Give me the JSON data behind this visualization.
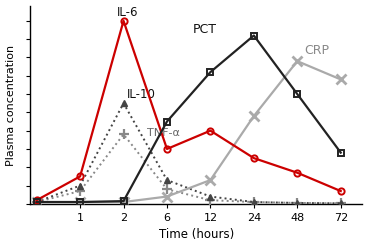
{
  "x_ticks": [
    1,
    2,
    6,
    12,
    24,
    48,
    72
  ],
  "xlabel": "Time (hours)",
  "ylabel": "Plasma concentration",
  "series": {
    "IL6": {
      "x": [
        0,
        1,
        2,
        6,
        12,
        24,
        48,
        72
      ],
      "y": [
        0.02,
        0.15,
        1.0,
        0.3,
        0.4,
        0.25,
        0.17,
        0.07
      ],
      "color": "#cc0000",
      "linestyle": "-",
      "marker": "o",
      "markersize": 4.5,
      "linewidth": 1.6,
      "fillstyle": "none",
      "markeredgewidth": 1.4,
      "label": "IL-6",
      "zorder": 5
    },
    "IL10": {
      "x": [
        0,
        1,
        2,
        6,
        12,
        24,
        48,
        72
      ],
      "y": [
        0.01,
        0.1,
        0.55,
        0.13,
        0.04,
        0.01,
        0.005,
        0.003
      ],
      "color": "#444444",
      "linestyle": ":",
      "marker": "^",
      "markersize": 5,
      "linewidth": 1.4,
      "fillstyle": "full",
      "markeredgewidth": 1.0,
      "label": "IL-10",
      "zorder": 4
    },
    "TNFa": {
      "x": [
        0,
        1,
        2,
        6,
        12,
        24,
        48,
        72
      ],
      "y": [
        0.01,
        0.07,
        0.38,
        0.08,
        0.02,
        0.01,
        0.005,
        0.003
      ],
      "color": "#888888",
      "linestyle": ":",
      "marker": "+",
      "markersize": 7,
      "linewidth": 1.4,
      "fillstyle": "full",
      "markeredgewidth": 1.6,
      "label": "TNF-α",
      "zorder": 3
    },
    "PCT": {
      "x": [
        0,
        1,
        2,
        6,
        12,
        24,
        48,
        72
      ],
      "y": [
        0.01,
        0.01,
        0.015,
        0.45,
        0.72,
        0.92,
        0.6,
        0.28
      ],
      "color": "#222222",
      "linestyle": "-",
      "marker": "s",
      "markersize": 5,
      "linewidth": 1.6,
      "fillstyle": "none",
      "markeredgewidth": 1.4,
      "label": "PCT",
      "zorder": 5
    },
    "CRP": {
      "x": [
        0,
        1,
        2,
        6,
        12,
        24,
        48,
        72
      ],
      "y": [
        0.01,
        0.01,
        0.01,
        0.04,
        0.13,
        0.48,
        0.78,
        0.68
      ],
      "color": "#aaaaaa",
      "linestyle": "-",
      "marker": "x",
      "markersize": 7,
      "linewidth": 1.6,
      "fillstyle": "full",
      "markeredgewidth": 2.0,
      "label": "CRP",
      "zorder": 4
    }
  },
  "labels": {
    "IL6": {
      "ix": 2,
      "iy": 1.01,
      "text": "IL-6",
      "color": "#111111",
      "fontsize": 8.5,
      "ha": "left"
    },
    "IL10": {
      "ix": 2,
      "iy": 0.56,
      "text": "IL-10",
      "color": "#111111",
      "fontsize": 8.5,
      "ha": "left"
    },
    "TNFa": {
      "ix": 2,
      "iy": 0.36,
      "text": "TNF-α",
      "color": "#666666",
      "fontsize": 8.0,
      "ha": "left"
    },
    "PCT": {
      "ix": 4,
      "iy": 0.92,
      "text": "PCT",
      "color": "#111111",
      "fontsize": 9.0,
      "ha": "left"
    },
    "CRP": {
      "ix": 6,
      "iy": 0.8,
      "text": "CRP",
      "color": "#888888",
      "fontsize": 9.0,
      "ha": "left"
    }
  },
  "ylim": [
    0,
    1.08
  ],
  "xlim": [
    -0.15,
    7.5
  ],
  "background_color": "#ffffff"
}
